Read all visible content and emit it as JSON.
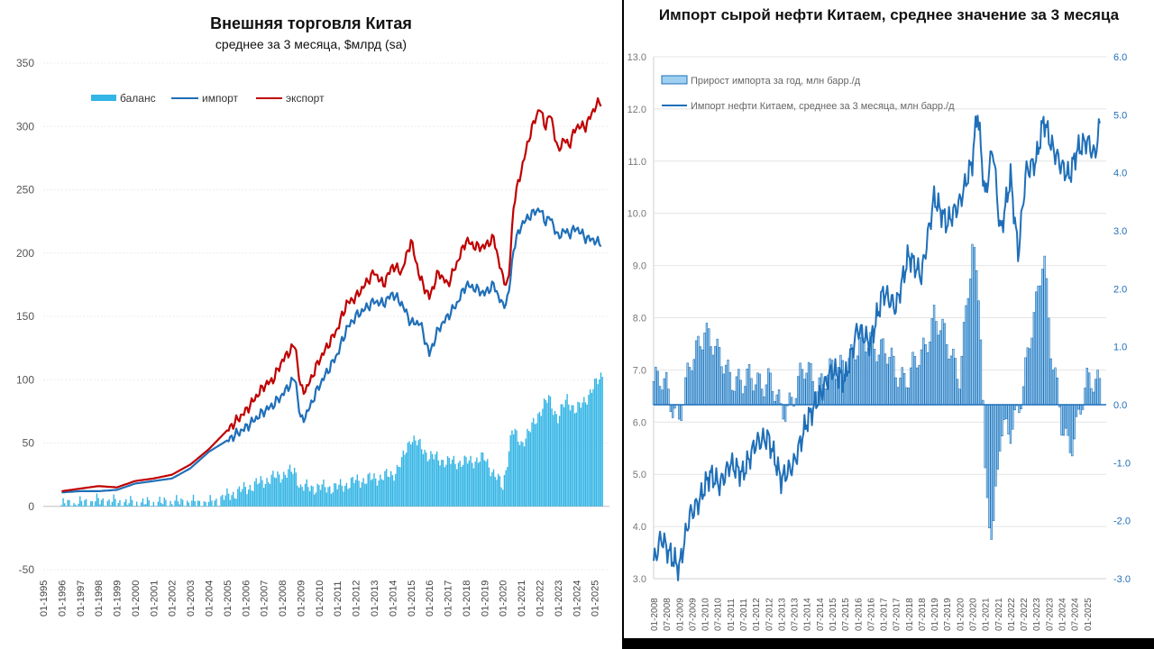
{
  "chart_data": [
    {
      "type": "line",
      "title": "Внешняя торговля Китая",
      "subtitle": "среднее за 3 месяца, $млрд (sa)",
      "legend": [
        "баланс",
        "импорт",
        "экспорт"
      ],
      "legend_position": "top-left",
      "ylim": [
        -50,
        350
      ],
      "yticks": [
        "350",
        "300",
        "250",
        "200",
        "150",
        "100",
        "50",
        "0",
        "-50"
      ],
      "xticks": [
        "01-1995",
        "01-1996",
        "01-1997",
        "01-1998",
        "01-1999",
        "01-2000",
        "01-2001",
        "01-2002",
        "01-2003",
        "01-2004",
        "01-2005",
        "01-2006",
        "01-2007",
        "01-2008",
        "01-2009",
        "01-2010",
        "01-2011",
        "01-2012",
        "01-2013",
        "01-2014",
        "01-2015",
        "01-2016",
        "01-2017",
        "01-2018",
        "01-2019",
        "01-2020",
        "01-2021",
        "01-2022",
        "01-2023",
        "01-2024",
        "01-2025"
      ],
      "grid": true,
      "series": [
        {
          "name": "экспорт",
          "color": "#c00000",
          "type": "line",
          "x": [
            1996.0,
            1997.0,
            1998.0,
            1999.0,
            2000.0,
            2001.0,
            2002.0,
            2003.0,
            2004.0,
            2005.0,
            2006.0,
            2007.0,
            2007.5,
            2008.0,
            2008.7,
            2009.0,
            2009.3,
            2010.0,
            2011.0,
            2011.5,
            2012.0,
            2013.0,
            2013.5,
            2014.0,
            2014.5,
            2015.0,
            2015.5,
            2016.0,
            2016.5,
            2017.0,
            2017.5,
            2018.0,
            2018.5,
            2019.0,
            2019.5,
            2020.0,
            2020.3,
            2020.6,
            2021.0,
            2021.5,
            2022.0,
            2022.3,
            2022.6,
            2023.0,
            2023.3,
            2023.6,
            2024.0,
            2024.5,
            2025.0,
            2025.3,
            2025.4
          ],
          "values": [
            12,
            14,
            16,
            15,
            20,
            22,
            25,
            33,
            45,
            60,
            75,
            95,
            100,
            115,
            128,
            93,
            92,
            115,
            140,
            160,
            165,
            185,
            175,
            190,
            185,
            210,
            180,
            165,
            185,
            175,
            192,
            210,
            205,
            205,
            212,
            180,
            175,
            240,
            265,
            295,
            315,
            300,
            310,
            280,
            290,
            285,
            300,
            300,
            315,
            320,
            318
          ]
        },
        {
          "name": "импорт",
          "color": "#1f6fb8",
          "type": "line",
          "x": [
            1996.0,
            1997.0,
            1998.0,
            1999.0,
            2000.0,
            2001.0,
            2002.0,
            2003.0,
            2004.0,
            2005.0,
            2006.0,
            2007.0,
            2007.5,
            2008.0,
            2008.7,
            2009.0,
            2009.3,
            2010.0,
            2011.0,
            2011.5,
            2012.0,
            2013.0,
            2013.5,
            2014.0,
            2014.5,
            2015.0,
            2015.5,
            2016.0,
            2016.5,
            2017.0,
            2017.5,
            2018.0,
            2018.5,
            2019.0,
            2019.5,
            2020.0,
            2020.3,
            2020.6,
            2021.0,
            2021.5,
            2022.0,
            2022.3,
            2022.6,
            2023.0,
            2023.3,
            2023.6,
            2024.0,
            2024.5,
            2025.0,
            2025.3,
            2025.4
          ],
          "values": [
            11,
            12,
            12,
            13,
            18,
            20,
            22,
            30,
            43,
            52,
            62,
            75,
            80,
            88,
            102,
            68,
            72,
            95,
            120,
            140,
            150,
            162,
            160,
            168,
            160,
            145,
            145,
            120,
            140,
            150,
            160,
            175,
            172,
            168,
            175,
            158,
            165,
            205,
            222,
            230,
            235,
            225,
            228,
            212,
            218,
            215,
            220,
            212,
            210,
            207,
            212
          ]
        },
        {
          "name": "баланс",
          "color": "#33b5e5",
          "type": "bar",
          "x": [
            1996.0,
            1997.0,
            1998.0,
            1999.0,
            2000.0,
            2001.0,
            2002.0,
            2003.0,
            2004.0,
            2005.0,
            2006.0,
            2007.0,
            2008.0,
            2008.7,
            2009.0,
            2010.0,
            2011.0,
            2012.0,
            2013.0,
            2014.0,
            2014.5,
            2015.0,
            2016.0,
            2017.0,
            2018.0,
            2019.0,
            2020.0,
            2020.5,
            2021.0,
            2021.5,
            2022.0,
            2022.5,
            2023.0,
            2023.5,
            2024.0,
            2024.5,
            2025.0,
            2025.4
          ],
          "values": [
            1,
            2,
            4,
            3,
            2,
            2,
            3,
            3,
            2,
            8,
            14,
            20,
            25,
            28,
            15,
            15,
            15,
            20,
            22,
            25,
            35,
            55,
            40,
            35,
            35,
            38,
            15,
            60,
            50,
            60,
            75,
            85,
            70,
            85,
            75,
            85,
            95,
            105
          ]
        }
      ]
    },
    {
      "type": "line",
      "title": "Импорт сырой нефти Китаем, среднее значение за 3 месяца",
      "legend": [
        "Прирост импорта за год, млн барр./д",
        "Импорт нефти Китаем, среднее за 3 месяца, млн барр./д"
      ],
      "legend_position": "top-left",
      "ylim_left": [
        3.0,
        13.0
      ],
      "ylim_right": [
        -3.0,
        6.0
      ],
      "yticks_left": [
        "13.0",
        "12.0",
        "11.0",
        "10.0",
        "9.0",
        "8.0",
        "7.0",
        "6.0",
        "5.0",
        "4.0",
        "3.0"
      ],
      "yticks_right": [
        "6.0",
        "5.0",
        "4.0",
        "3.0",
        "2.0",
        "1.0",
        "0.0",
        "-1.0",
        "-2.0",
        "-3.0"
      ],
      "xticks": [
        "01-2008",
        "07-2008",
        "01-2009",
        "07-2009",
        "01-2010",
        "07-2010",
        "01-2011",
        "07-2011",
        "01-2012",
        "07-2012",
        "01-2013",
        "07-2013",
        "01-2014",
        "07-2014",
        "01-2015",
        "07-2015",
        "01-2016",
        "07-2016",
        "01-2017",
        "07-2017",
        "01-2018",
        "07-2018",
        "01-2019",
        "07-2019",
        "01-2020",
        "07-2020",
        "01-2021",
        "07-2021",
        "01-2022",
        "07-2022",
        "01-2023",
        "07-2023",
        "01-2024",
        "07-2024",
        "01-2025"
      ],
      "grid": true,
      "series": [
        {
          "name": "Импорт нефти Китаем, среднее за 3 месяца, млн барр./д",
          "color": "#1f6fb8",
          "type": "line",
          "axis": "left",
          "x": [
            2008.0,
            2008.3,
            2008.6,
            2009.0,
            2009.4,
            2009.8,
            2010.2,
            2010.6,
            2011.0,
            2011.5,
            2012.0,
            2012.5,
            2013.0,
            2013.5,
            2014.0,
            2014.5,
            2015.0,
            2015.5,
            2016.0,
            2016.5,
            2017.0,
            2017.5,
            2018.0,
            2018.5,
            2019.0,
            2019.5,
            2020.0,
            2020.5,
            2020.7,
            2021.0,
            2021.3,
            2021.6,
            2022.0,
            2022.3,
            2022.6,
            2023.0,
            2023.3,
            2023.6,
            2024.0,
            2024.3,
            2024.6,
            2025.0,
            2025.3,
            2025.5
          ],
          "values": [
            3.3,
            3.8,
            3.5,
            3.2,
            4.2,
            4.5,
            5.0,
            4.8,
            5.2,
            5.0,
            5.6,
            5.7,
            4.9,
            5.2,
            6.0,
            6.5,
            7.0,
            6.8,
            7.8,
            7.5,
            8.5,
            8.2,
            9.2,
            8.8,
            10.3,
            9.8,
            10.2,
            11.0,
            12.0,
            10.3,
            11.3,
            9.6,
            10.7,
            9.2,
            10.8,
            11.0,
            11.8,
            11.3,
            10.9,
            10.7,
            11.2,
            11.4,
            11.1,
            11.7
          ]
        },
        {
          "name": "Прирост импорта за год, млн барр./д",
          "color": "#3a8fd0",
          "type": "bar",
          "axis": "right",
          "x": [
            2008.0,
            2008.5,
            2009.0,
            2009.5,
            2010.0,
            2010.5,
            2011.0,
            2011.5,
            2012.0,
            2012.5,
            2013.0,
            2013.5,
            2014.0,
            2014.5,
            2015.0,
            2015.5,
            2016.0,
            2016.5,
            2017.0,
            2017.5,
            2018.0,
            2018.5,
            2019.0,
            2019.5,
            2020.0,
            2020.5,
            2020.8,
            2021.0,
            2021.3,
            2021.6,
            2022.0,
            2022.5,
            2023.0,
            2023.3,
            2023.6,
            2024.0,
            2024.3,
            2024.6,
            2025.0,
            2025.5
          ],
          "values": [
            0.4,
            0.3,
            -0.2,
            0.7,
            1.4,
            0.8,
            0.6,
            0.3,
            0.5,
            0.4,
            -0.1,
            0.2,
            0.6,
            0.4,
            0.5,
            0.8,
            0.9,
            1.2,
            0.9,
            0.6,
            0.5,
            0.8,
            1.6,
            1.0,
            0.6,
            2.6,
            1.8,
            -1.2,
            -2.3,
            -0.6,
            -0.4,
            0.3,
            1.7,
            2.8,
            0.9,
            -0.4,
            -0.7,
            -0.3,
            0.3,
            0.5
          ]
        }
      ]
    }
  ]
}
